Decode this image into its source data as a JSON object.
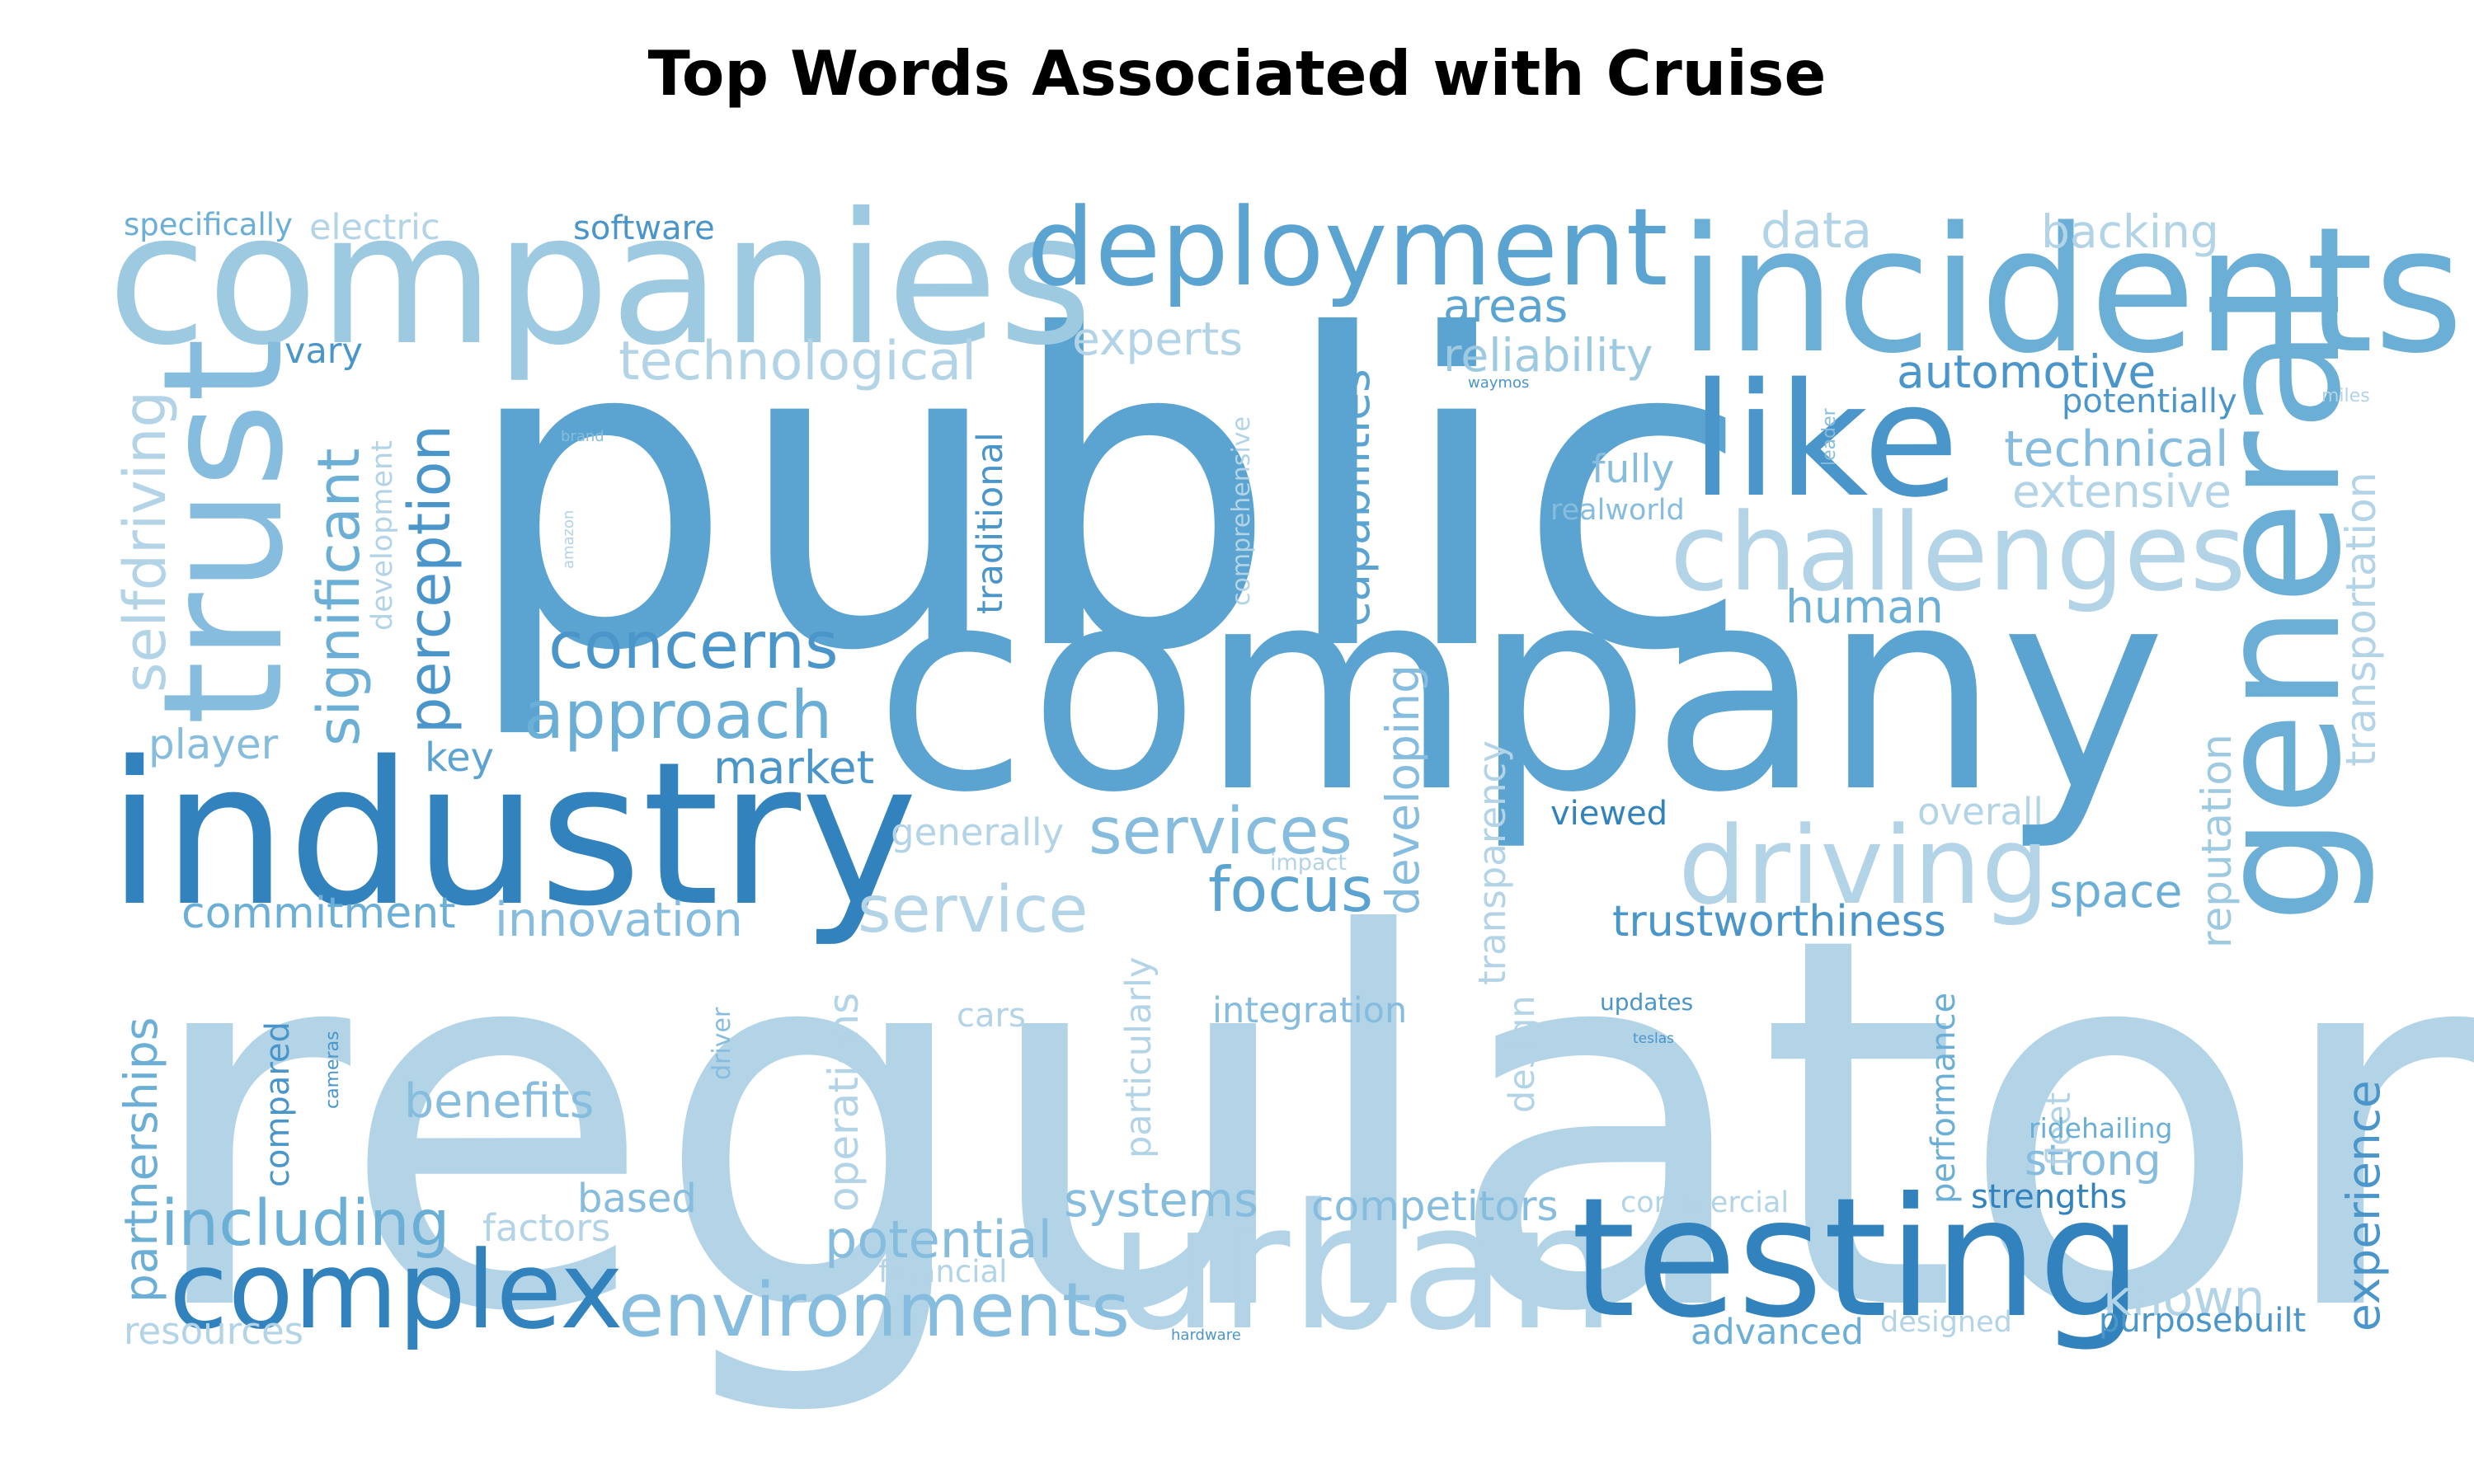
{
  "chart_data": {
    "type": "wordcloud",
    "title": "Top Words Associated with Cruise",
    "colors": [
      "#3182bd",
      "#4a95c9",
      "#5ba3d0",
      "#6baed6",
      "#86bcdd",
      "#9ecae1",
      "#b3d3e7"
    ],
    "words": [
      {
        "text": "regulatory",
        "weight": 100,
        "color": "#b3d3e7"
      },
      {
        "text": "public",
        "weight": 92,
        "color": "#5ba3d0"
      },
      {
        "text": "company",
        "weight": 66,
        "color": "#5ba3d0"
      },
      {
        "text": "industry",
        "weight": 48,
        "color": "#3182bd"
      },
      {
        "text": "companies",
        "weight": 45,
        "color": "#9ecae1"
      },
      {
        "text": "urban",
        "weight": 42,
        "color": "#b3d3e7"
      },
      {
        "text": "incidents",
        "weight": 42,
        "color": "#6baed6"
      },
      {
        "text": "general",
        "weight": 40,
        "color": "#6baed6"
      },
      {
        "text": "testing",
        "weight": 40,
        "color": "#3182bd"
      },
      {
        "text": "trust",
        "weight": 38,
        "color": "#86bcdd"
      },
      {
        "text": "like",
        "weight": 37,
        "color": "#4a95c9"
      },
      {
        "text": "deployment",
        "weight": 27,
        "color": "#5ba3d0"
      },
      {
        "text": "challenges",
        "weight": 27,
        "color": "#b3d3e7"
      },
      {
        "text": "complex",
        "weight": 27,
        "color": "#3182bd"
      },
      {
        "text": "driving",
        "weight": 27,
        "color": "#b3d3e7"
      },
      {
        "text": "environments",
        "weight": 20,
        "color": "#86bcdd"
      },
      {
        "text": "selfdriving",
        "weight": 18,
        "color": "#b3d3e7"
      },
      {
        "text": "significant",
        "weight": 18,
        "color": "#6baed6"
      },
      {
        "text": "perception",
        "weight": 18,
        "color": "#4a95c9"
      },
      {
        "text": "approach",
        "weight": 18,
        "color": "#6baed6"
      },
      {
        "text": "concerns",
        "weight": 17,
        "color": "#4a95c9"
      },
      {
        "text": "services",
        "weight": 17,
        "color": "#86bcdd"
      },
      {
        "text": "service",
        "weight": 17,
        "color": "#b3d3e7"
      },
      {
        "text": "focus",
        "weight": 16,
        "color": "#5ba3d0"
      },
      {
        "text": "including",
        "weight": 17,
        "color": "#6baed6"
      },
      {
        "text": "technological",
        "weight": 15,
        "color": "#b3d3e7"
      },
      {
        "text": "capabilities",
        "weight": 13,
        "color": "#5ba3d0"
      },
      {
        "text": "developing",
        "weight": 13,
        "color": "#86bcdd"
      },
      {
        "text": "technical",
        "weight": 14,
        "color": "#86bcdd"
      },
      {
        "text": "reliability",
        "weight": 13,
        "color": "#9ecae1"
      },
      {
        "text": "partnerships",
        "weight": 14,
        "color": "#6baed6"
      },
      {
        "text": "experience",
        "weight": 13,
        "color": "#4a95c9"
      },
      {
        "text": "transportation",
        "weight": 12,
        "color": "#b3d3e7"
      },
      {
        "text": "reputation",
        "weight": 12,
        "color": "#9ecae1"
      },
      {
        "text": "potential",
        "weight": 14,
        "color": "#86bcdd"
      },
      {
        "text": "benefits",
        "weight": 13,
        "color": "#86bcdd"
      },
      {
        "text": "innovation",
        "weight": 13,
        "color": "#86bcdd"
      },
      {
        "text": "commitment",
        "weight": 12,
        "color": "#6baed6"
      },
      {
        "text": "trustworthiness",
        "weight": 12,
        "color": "#4a95c9"
      },
      {
        "text": "operations",
        "weight": 12,
        "color": "#b3d3e7"
      },
      {
        "text": "systems",
        "weight": 13,
        "color": "#86bcdd"
      },
      {
        "text": "competitors",
        "weight": 11,
        "color": "#86bcdd"
      },
      {
        "text": "human",
        "weight": 12,
        "color": "#6baed6"
      },
      {
        "text": "automotive",
        "weight": 12,
        "color": "#4a95c9"
      },
      {
        "text": "extensive",
        "weight": 12,
        "color": "#b3d3e7"
      },
      {
        "text": "market",
        "weight": 12,
        "color": "#4a95c9"
      },
      {
        "text": "data",
        "weight": 13,
        "color": "#b3d3e7"
      },
      {
        "text": "backing",
        "weight": 12,
        "color": "#b3d3e7"
      },
      {
        "text": "experts",
        "weight": 12,
        "color": "#b3d3e7"
      },
      {
        "text": "areas",
        "weight": 12,
        "color": "#5ba3d0"
      },
      {
        "text": "space",
        "weight": 12,
        "color": "#6baed6"
      },
      {
        "text": "known",
        "weight": 13,
        "color": "#b3d3e7"
      },
      {
        "text": "strong",
        "weight": 11,
        "color": "#86bcdd"
      },
      {
        "text": "transparency",
        "weight": 11,
        "color": "#b3d3e7"
      },
      {
        "text": "particularly",
        "weight": 11,
        "color": "#b3d3e7"
      },
      {
        "text": "player",
        "weight": 11,
        "color": "#86bcdd"
      },
      {
        "text": "key",
        "weight": 11,
        "color": "#5ba3d0"
      },
      {
        "text": "integration",
        "weight": 10,
        "color": "#86bcdd"
      },
      {
        "text": "generally",
        "weight": 10,
        "color": "#b3d3e7"
      },
      {
        "text": "traditional",
        "weight": 10,
        "color": "#4a95c9"
      },
      {
        "text": "fully",
        "weight": 11,
        "color": "#86bcdd"
      },
      {
        "text": "overall",
        "weight": 10,
        "color": "#b3d3e7"
      },
      {
        "text": "based",
        "weight": 10,
        "color": "#86bcdd"
      },
      {
        "text": "factors",
        "weight": 10,
        "color": "#b3d3e7"
      },
      {
        "text": "design",
        "weight": 10,
        "color": "#b3d3e7"
      },
      {
        "text": "performance",
        "weight": 9,
        "color": "#6baed6"
      },
      {
        "text": "compared",
        "weight": 10,
        "color": "#4a95c9"
      },
      {
        "text": "advanced",
        "weight": 10,
        "color": "#6baed6"
      },
      {
        "text": "purposebuilt",
        "weight": 10,
        "color": "#4a95c9"
      },
      {
        "text": "strengths",
        "weight": 9,
        "color": "#3182bd"
      },
      {
        "text": "viewed",
        "weight": 9,
        "color": "#3182bd"
      },
      {
        "text": "resources",
        "weight": 10,
        "color": "#b3d3e7"
      },
      {
        "text": "potentially",
        "weight": 9,
        "color": "#4a95c9"
      },
      {
        "text": "vary",
        "weight": 10,
        "color": "#4a95c9"
      },
      {
        "text": "software",
        "weight": 9,
        "color": "#4a95c9"
      },
      {
        "text": "specifically",
        "weight": 9,
        "color": "#6baed6"
      },
      {
        "text": "electric",
        "weight": 10,
        "color": "#b3d3e7"
      },
      {
        "text": "fleet",
        "weight": 9,
        "color": "#b3d3e7"
      },
      {
        "text": "cars",
        "weight": 9,
        "color": "#b3d3e7"
      },
      {
        "text": "financial",
        "weight": 8,
        "color": "#b3d3e7"
      },
      {
        "text": "designed",
        "weight": 8,
        "color": "#b3d3e7"
      },
      {
        "text": "commercial",
        "weight": 8,
        "color": "#b3d3e7"
      },
      {
        "text": "ridehailing",
        "weight": 8,
        "color": "#6baed6"
      },
      {
        "text": "realworld",
        "weight": 8,
        "color": "#86bcdd"
      },
      {
        "text": "development",
        "weight": 8,
        "color": "#b3d3e7"
      },
      {
        "text": "comprehensive",
        "weight": 7,
        "color": "#b3d3e7"
      },
      {
        "text": "driver",
        "weight": 7,
        "color": "#86bcdd"
      },
      {
        "text": "updates",
        "weight": 6,
        "color": "#4a95c9"
      },
      {
        "text": "impact",
        "weight": 6,
        "color": "#b3d3e7"
      },
      {
        "text": "cameras",
        "weight": 5,
        "color": "#4a95c9"
      },
      {
        "text": "leader",
        "weight": 5,
        "color": "#86bcdd"
      },
      {
        "text": "waymos",
        "weight": 4,
        "color": "#4a95c9"
      },
      {
        "text": "miles",
        "weight": 4,
        "color": "#b3d3e7"
      },
      {
        "text": "teslas",
        "weight": 4,
        "color": "#4a95c9"
      },
      {
        "text": "hardware",
        "weight": 4,
        "color": "#4a95c9"
      },
      {
        "text": "brand",
        "weight": 3,
        "color": "#86bcdd"
      },
      {
        "text": "amazon",
        "weight": 3,
        "color": "#b3d3e7"
      }
    ]
  }
}
